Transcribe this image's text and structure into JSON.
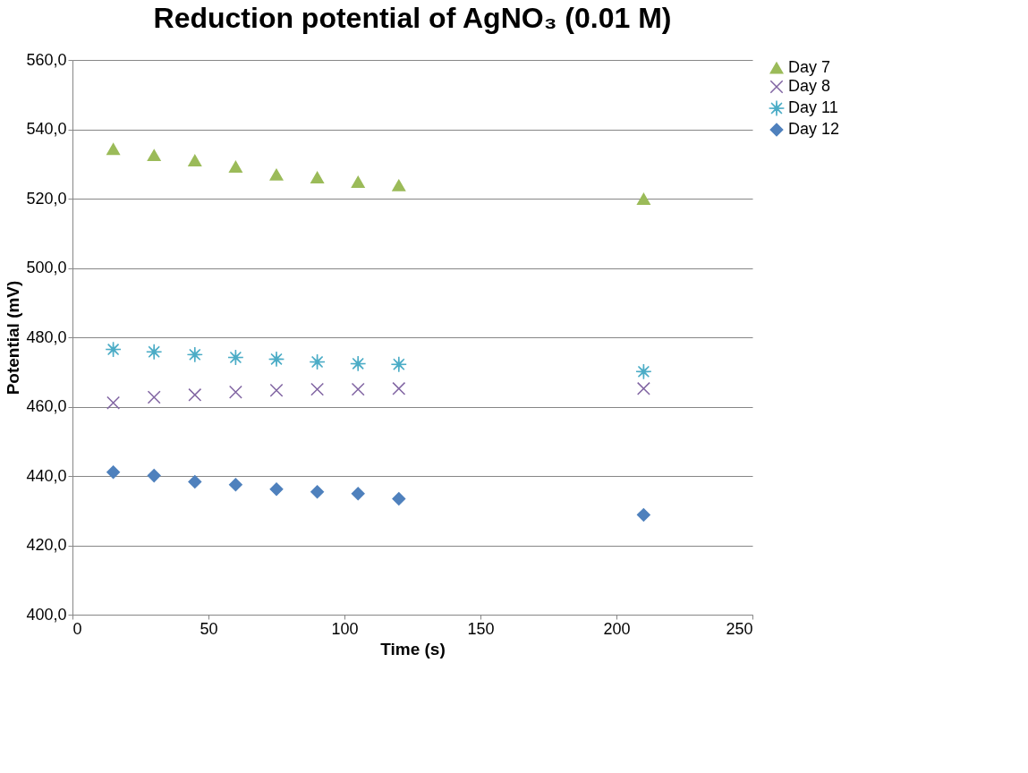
{
  "chart_data": {
    "type": "scatter",
    "title": "Reduction potential of AgNO₃ (0.01 M)",
    "xlabel": "Time (s)",
    "ylabel": "Potential (mV)",
    "x": [
      15,
      30,
      45,
      60,
      75,
      90,
      105,
      120,
      210
    ],
    "series": [
      {
        "name": "Day 7",
        "color": "#9bbb59",
        "marker": "triangle",
        "values": [
          534.3,
          532.5,
          531.0,
          529.2,
          526.9,
          526.1,
          524.8,
          523.8,
          519.9
        ]
      },
      {
        "name": "Day 8",
        "color": "#8064a2",
        "marker": "cross",
        "values": [
          461.1,
          462.7,
          463.4,
          464.2,
          464.7,
          465.0,
          465.0,
          465.2,
          465.2
        ]
      },
      {
        "name": "Day 11",
        "color": "#4bacc6",
        "marker": "star",
        "values": [
          476.5,
          475.8,
          475.0,
          474.2,
          473.7,
          472.9,
          472.4,
          472.2,
          470.1
        ]
      },
      {
        "name": "Day 12",
        "color": "#4f81bd",
        "marker": "diamond",
        "values": [
          441.1,
          440.1,
          438.3,
          437.5,
          436.2,
          435.4,
          434.9,
          433.4,
          428.8
        ]
      }
    ],
    "xlim": [
      0,
      250
    ],
    "xticks": [
      0,
      50,
      100,
      150,
      200,
      250
    ],
    "ylim": [
      400,
      560
    ],
    "yticks": [
      {
        "value": 400,
        "label": "400,0"
      },
      {
        "value": 420,
        "label": "420,0"
      },
      {
        "value": 440,
        "label": "440,0"
      },
      {
        "value": 460,
        "label": "460,0"
      },
      {
        "value": 480,
        "label": "480,0"
      },
      {
        "value": 500,
        "label": "500,0"
      },
      {
        "value": 520,
        "label": "520,0"
      },
      {
        "value": 540,
        "label": "540,0"
      },
      {
        "value": 560,
        "label": "560,0"
      }
    ],
    "grid": "y",
    "legend": "right"
  }
}
